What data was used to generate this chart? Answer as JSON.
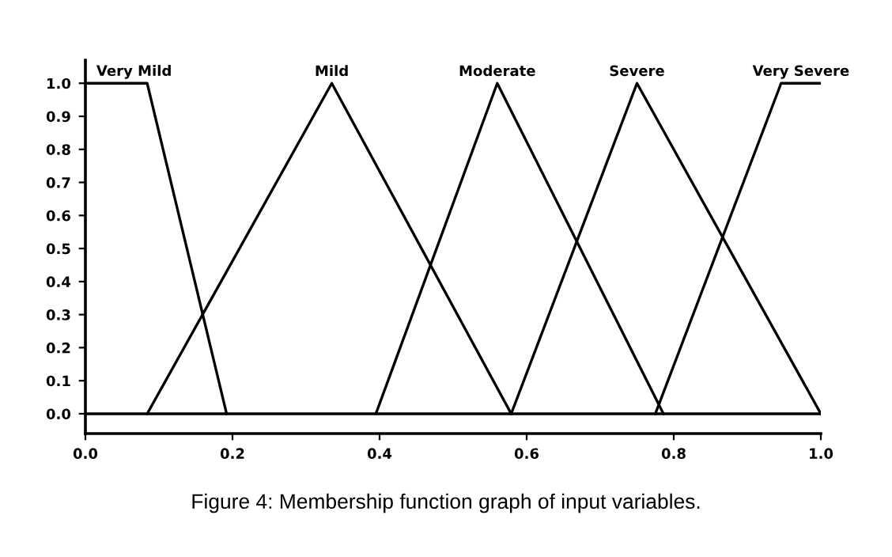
{
  "chart_data": {
    "type": "line",
    "series": [
      {
        "name": "Very Mild",
        "color": "#000000",
        "x": [
          0.0,
          0.084,
          0.192
        ],
        "values": [
          1.0,
          1.0,
          0.0
        ]
      },
      {
        "name": "Mild",
        "color": "#000000",
        "x": [
          0.084,
          0.335,
          0.579
        ],
        "values": [
          0.0,
          1.0,
          0.0
        ]
      },
      {
        "name": "Moderate",
        "color": "#000000",
        "x": [
          0.395,
          0.56,
          0.786
        ],
        "values": [
          0.0,
          1.0,
          0.0
        ]
      },
      {
        "name": "Severe",
        "color": "#000000",
        "x": [
          0.579,
          0.75,
          1.0
        ],
        "values": [
          0.0,
          1.0,
          0.0
        ]
      },
      {
        "name": "Very Severe",
        "color": "#000000",
        "x": [
          0.775,
          0.946,
          1.0
        ],
        "values": [
          0.0,
          1.0,
          1.0
        ]
      }
    ],
    "xlim": [
      0.0,
      1.0
    ],
    "ylim": [
      -0.06,
      1.07
    ],
    "xticks": [
      {
        "value": 0.0,
        "label": "0.0"
      },
      0.2,
      0.4,
      0.6,
      0.8,
      {
        "value": 1.0,
        "label": "1.0"
      }
    ],
    "yticks": [
      {
        "value": 0.0,
        "label": "0.0"
      },
      0.1,
      0.2,
      0.3,
      0.4,
      0.5,
      0.6,
      0.7,
      0.8,
      0.9,
      {
        "value": 1.0,
        "label": "1.0"
      }
    ],
    "ref_lines": [
      {
        "axis": "y",
        "value": 0.0,
        "label": null,
        "color": "#000000",
        "line_style": "solid"
      }
    ],
    "annotations": [
      "Figure 4: Membership function graph of input variables."
    ],
    "grid": false,
    "legend": false,
    "marker": "none",
    "line_style": "solid"
  }
}
